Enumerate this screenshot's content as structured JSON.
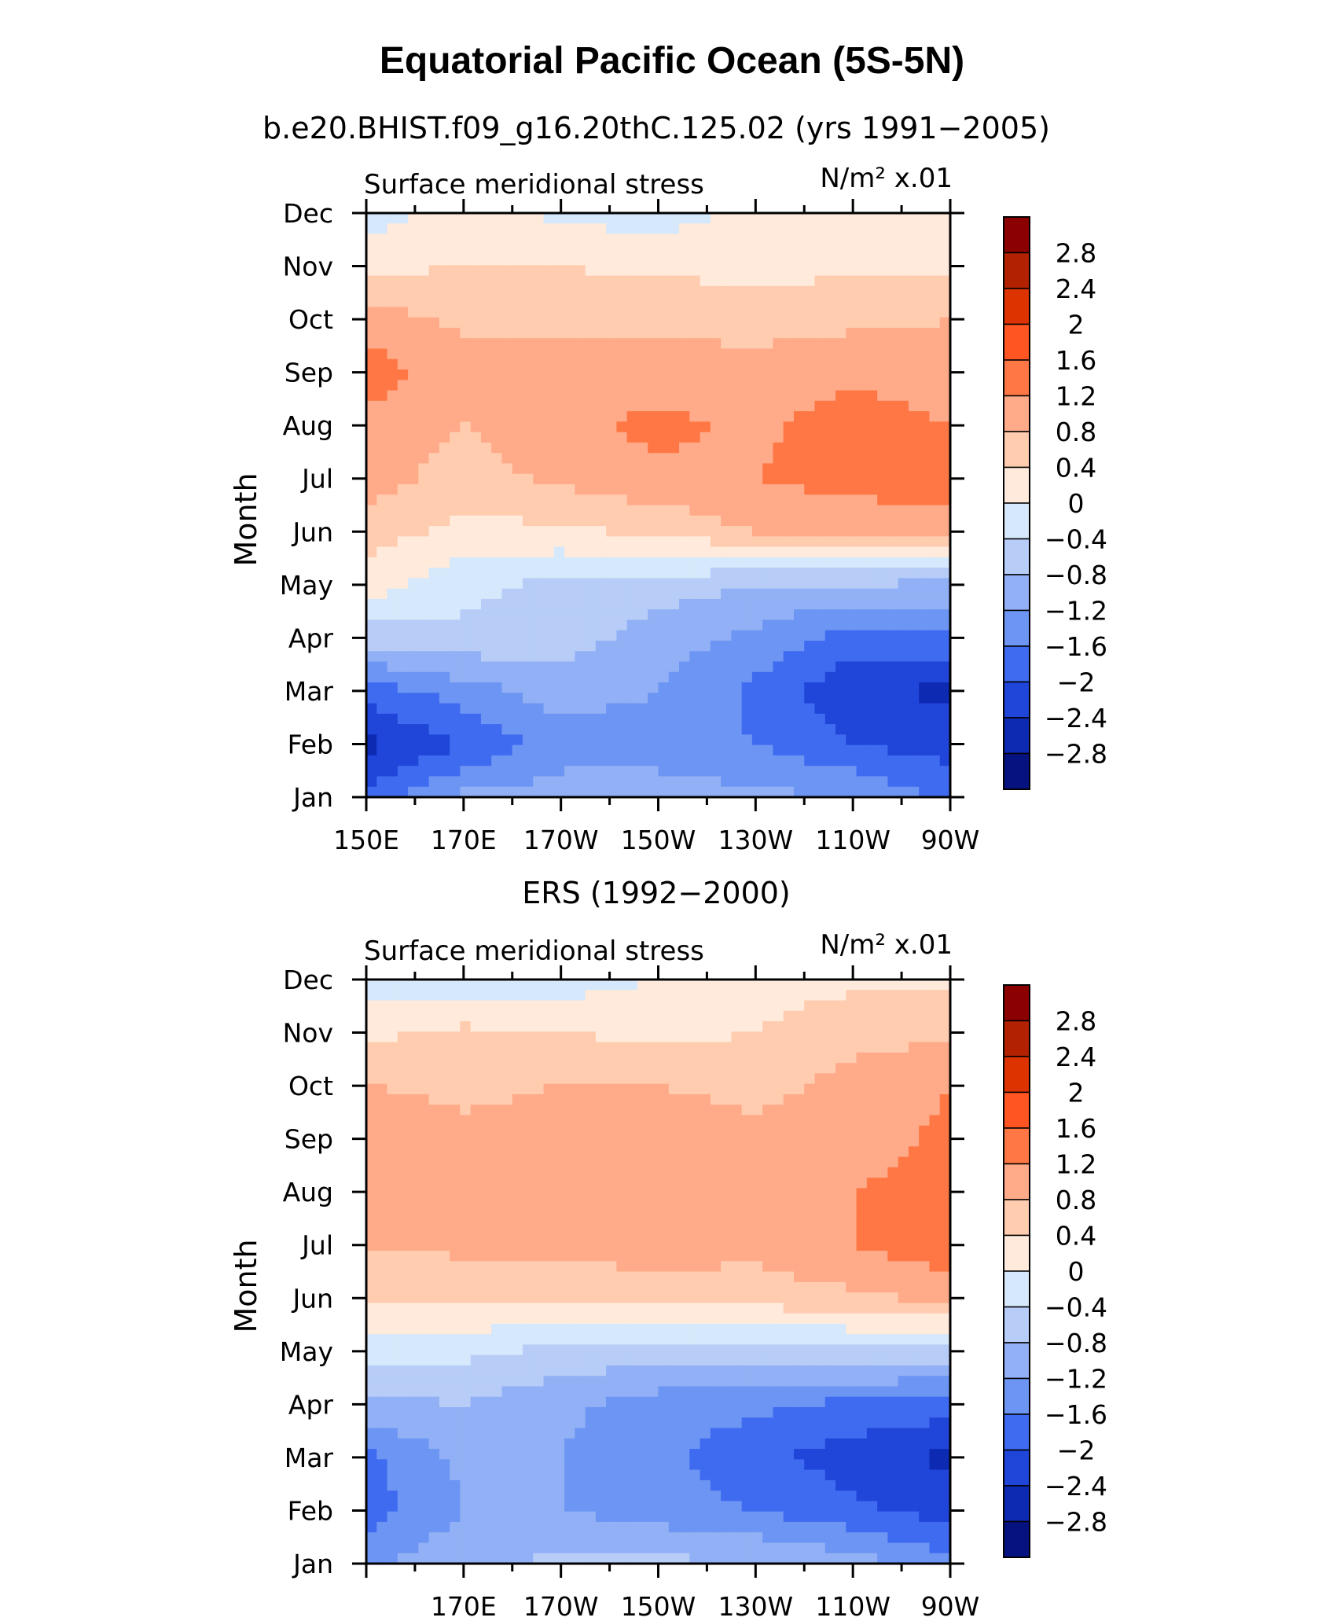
{
  "figure": {
    "title": "Equatorial Pacific Ocean (5S-5N)"
  },
  "colorbar": {
    "colors": [
      "#8b0000",
      "#b22200",
      "#dd3300",
      "#ff5522",
      "#ff7744",
      "#ffaa88",
      "#ffccb0",
      "#ffeadb",
      "#d6e8fb",
      "#b7cdf7",
      "#91b0f5",
      "#6d95f3",
      "#3f6bf0",
      "#1f45d9",
      "#0d2ab3",
      "#06127f"
    ],
    "labels": [
      "2.8",
      "2.4",
      "2",
      "1.6",
      "1.2",
      "0.8",
      "0.4",
      "0",
      "−0.4",
      "−0.8",
      "−1.2",
      "−1.6",
      "−2",
      "−2.4",
      "−2.8"
    ]
  },
  "panels": [
    {
      "subtitle": "b.e20.BHIST.f09_g16.20thC.125.02 (yrs 1991−2005)",
      "left_label": "Surface meridional stress",
      "right_label": "N/m² x.01",
      "ylabel": "Month",
      "xticks": [
        "150E",
        "170E",
        "170W",
        "150W",
        "130W",
        "110W",
        "90W"
      ]
    },
    {
      "subtitle": "ERS (1992−2000)",
      "left_label": "Surface meridional stress",
      "right_label": "N/m² x.01",
      "ylabel": "Month",
      "xticks": [
        "",
        "170E",
        "170W",
        "150W",
        "130W",
        "110W",
        "90W"
      ]
    }
  ],
  "chart_data": [
    {
      "type": "heatmap",
      "title": "b.e20.BHIST.f09_g16.20thC.125.02 (yrs 1991−2005)",
      "variable": "Surface meridional stress",
      "units": "N/m² x.01",
      "ylabel": "Month",
      "x": [
        150,
        170,
        190,
        210,
        230,
        250,
        270
      ],
      "x_tick_labels": [
        "150E",
        "170E",
        "170W",
        "150W",
        "130W",
        "110W",
        "90W"
      ],
      "y": [
        "Jan",
        "Feb",
        "Mar",
        "Apr",
        "May",
        "Jun",
        "Jul",
        "Aug",
        "Sep",
        "Oct",
        "Nov",
        "Dec"
      ],
      "contour_levels": [
        -2.8,
        -2.4,
        -2,
        -1.6,
        -1.2,
        -0.8,
        -0.4,
        0,
        0.4,
        0.8,
        1.2,
        1.6,
        2,
        2.4,
        2.8
      ],
      "z": [
        [
          -1.9,
          -1.1,
          -1.0,
          -1.0,
          -1.1,
          -1.2,
          -1.7
        ],
        [
          -2.5,
          -2.0,
          -1.4,
          -1.4,
          -1.6,
          -2.0,
          -2.2
        ],
        [
          -1.8,
          -1.4,
          -1.0,
          -1.2,
          -1.7,
          -2.3,
          -2.5
        ],
        [
          -0.6,
          -0.5,
          -0.6,
          -1.0,
          -1.3,
          -1.8,
          -1.7
        ],
        [
          0.2,
          -0.3,
          -0.5,
          -0.6,
          -0.8,
          -0.8,
          -0.9
        ],
        [
          0.6,
          0.3,
          0.3,
          0.5,
          0.8,
          0.8,
          0.9
        ],
        [
          1.0,
          0.6,
          0.9,
          1.1,
          1.2,
          1.4,
          1.6
        ],
        [
          1.1,
          0.8,
          1.1,
          1.3,
          1.1,
          1.4,
          1.2
        ],
        [
          1.4,
          1.0,
          1.0,
          1.0,
          1.0,
          1.1,
          1.0
        ],
        [
          1.0,
          0.7,
          0.7,
          0.7,
          0.6,
          0.7,
          0.8
        ],
        [
          0.3,
          0.4,
          0.4,
          0.3,
          0.3,
          0.3,
          0.3
        ],
        [
          -0.2,
          0.2,
          -0.1,
          -0.2,
          0.1,
          0.2,
          0.2
        ]
      ]
    },
    {
      "type": "heatmap",
      "title": "ERS (1992−2000)",
      "variable": "Surface meridional stress",
      "units": "N/m² x.01",
      "ylabel": "Month",
      "x": [
        150,
        170,
        190,
        210,
        230,
        250,
        270
      ],
      "x_tick_labels": [
        "",
        "170E",
        "170W",
        "150W",
        "130W",
        "110W",
        "90W"
      ],
      "y": [
        "Jan",
        "Feb",
        "Mar",
        "Apr",
        "May",
        "Jun",
        "Jul",
        "Aug",
        "Sep",
        "Oct",
        "Nov",
        "Dec"
      ],
      "contour_levels": [
        -2.8,
        -2.4,
        -2,
        -1.6,
        -1.2,
        -0.8,
        -0.4,
        0,
        0.4,
        0.8,
        1.2,
        1.6,
        2,
        2.4,
        2.8
      ],
      "z": [
        [
          -1.3,
          -0.9,
          -0.7,
          -0.7,
          -0.8,
          -1.0,
          -1.5
        ],
        [
          -1.8,
          -1.2,
          -1.2,
          -1.4,
          -1.6,
          -1.9,
          -2.2
        ],
        [
          -1.7,
          -1.1,
          -1.2,
          -1.5,
          -1.9,
          -2.2,
          -2.5
        ],
        [
          -0.9,
          -0.8,
          -1.1,
          -1.4,
          -1.5,
          -1.7,
          -1.8
        ],
        [
          -0.2,
          -0.3,
          -0.5,
          -0.6,
          -0.6,
          -0.5,
          -0.5
        ],
        [
          0.4,
          0.5,
          0.5,
          0.6,
          0.6,
          0.7,
          0.9
        ],
        [
          0.8,
          0.9,
          0.9,
          1.0,
          0.9,
          1.2,
          1.5
        ],
        [
          0.8,
          0.8,
          1.0,
          1.1,
          1.0,
          1.2,
          1.4
        ],
        [
          1.1,
          0.9,
          1.0,
          1.0,
          0.9,
          1.0,
          1.3
        ],
        [
          0.8,
          0.7,
          0.8,
          0.8,
          0.7,
          0.9,
          1.2
        ],
        [
          0.3,
          0.5,
          0.4,
          0.3,
          0.4,
          0.7,
          0.7
        ],
        [
          -0.2,
          -0.3,
          -0.2,
          0.0,
          0.2,
          0.3,
          0.3
        ]
      ]
    }
  ]
}
